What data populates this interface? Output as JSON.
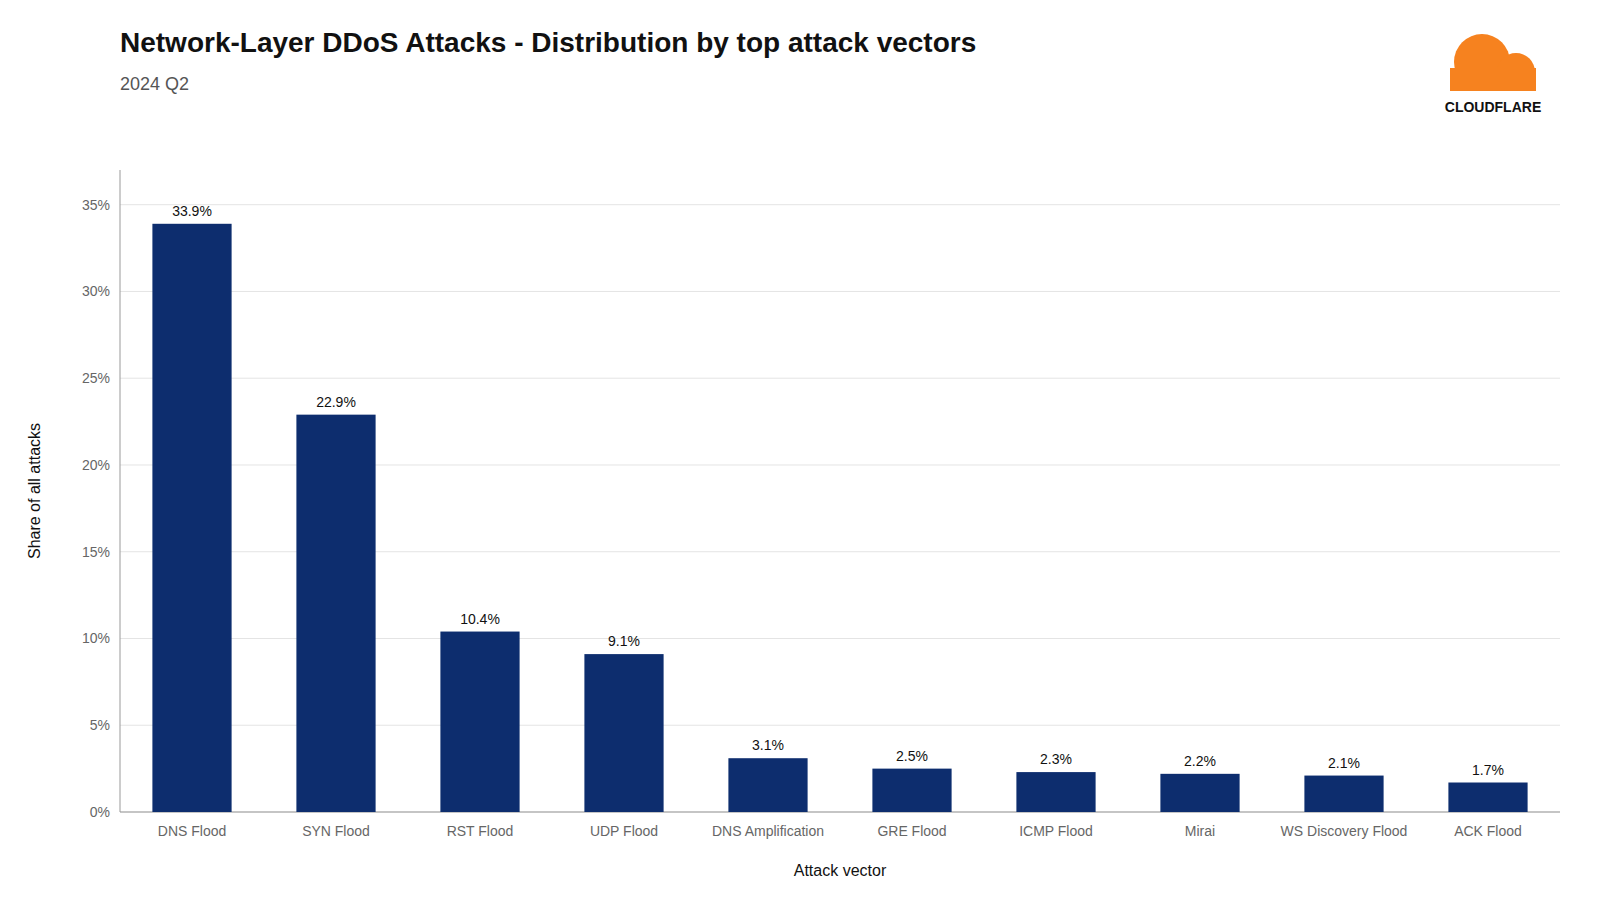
{
  "chart_data": {
    "type": "bar",
    "title": "Network-Layer DDoS Attacks - Distribution by top attack vectors",
    "subtitle": "2024 Q2",
    "x_label": "Attack vector",
    "y_label": "Share of all attacks",
    "categories": [
      "DNS Flood",
      "SYN Flood",
      "RST Flood",
      "UDP Flood",
      "DNS Amplification",
      "GRE Flood",
      "ICMP Flood",
      "Mirai",
      "WS Discovery Flood",
      "ACK Flood"
    ],
    "values": [
      33.9,
      22.9,
      10.4,
      9.1,
      3.1,
      2.5,
      2.3,
      2.2,
      2.1,
      1.7
    ],
    "value_labels": [
      "33.9%",
      "22.9%",
      "10.4%",
      "9.1%",
      "3.1%",
      "2.5%",
      "2.3%",
      "2.2%",
      "2.1%",
      "1.7%"
    ],
    "data_labels": true,
    "color": "#0d2d6e",
    "ylim": [
      0,
      37
    ],
    "yticks": [
      {
        "value": 0,
        "label": "0%"
      },
      {
        "value": 5,
        "label": "5%"
      },
      {
        "value": 10,
        "label": "10%"
      },
      {
        "value": 15,
        "label": "15%"
      },
      {
        "value": 20,
        "label": "20%"
      },
      {
        "value": 25,
        "label": "25%"
      },
      {
        "value": 30,
        "label": "30%"
      },
      {
        "value": 35,
        "label": "35%"
      }
    ],
    "grid": true,
    "annotations": [
      "CLOUDFLARE"
    ]
  }
}
